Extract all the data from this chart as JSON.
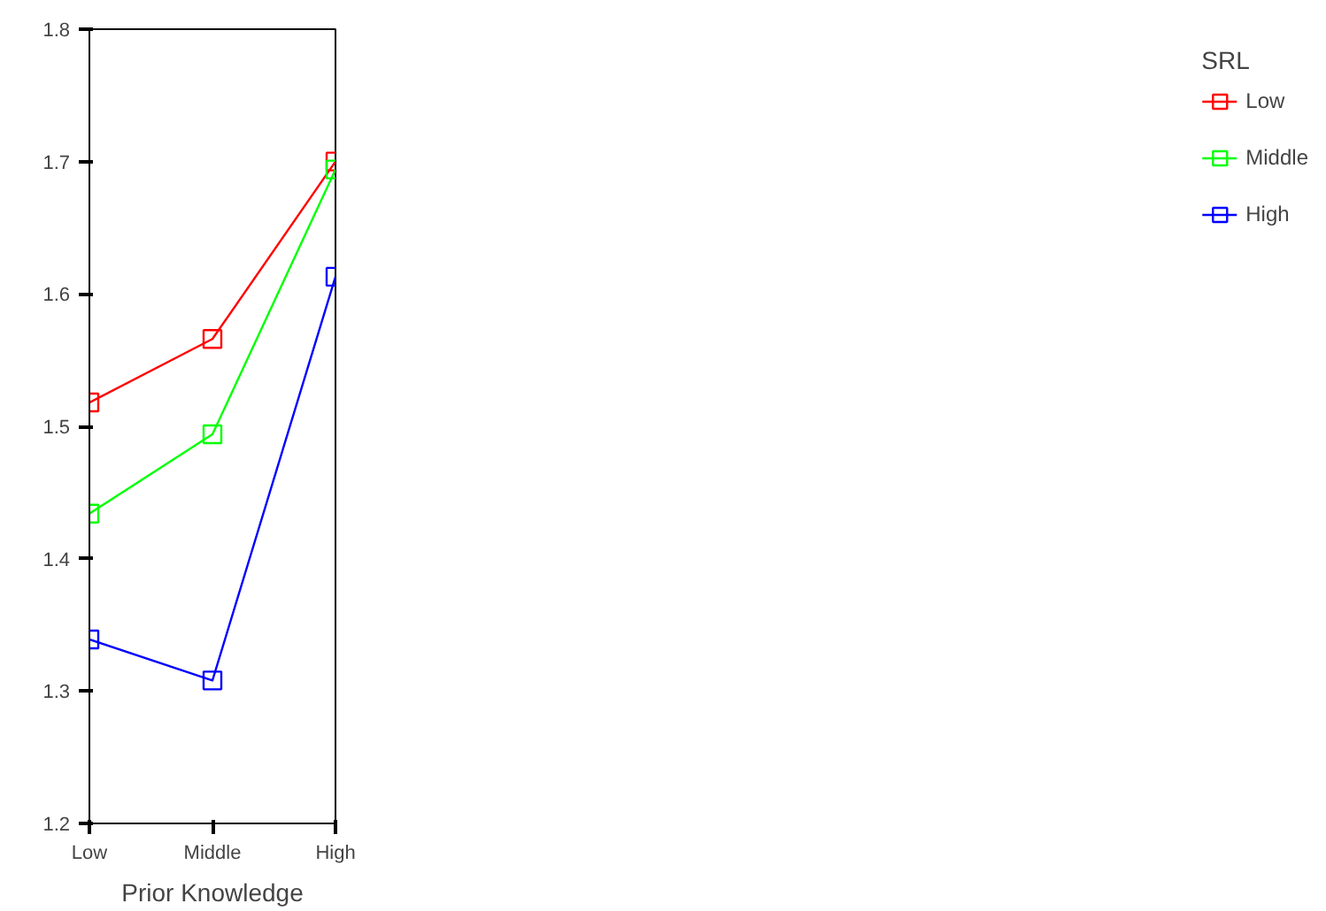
{
  "chart_data": {
    "type": "line",
    "xlabel": "Prior Knowledge",
    "legend_title": "SRL",
    "categories": [
      "Low",
      "Middle",
      "High"
    ],
    "series": [
      {
        "name": "Low",
        "color": "#ff0000",
        "values": [
          1.518,
          1.566,
          1.7
        ]
      },
      {
        "name": "Middle",
        "color": "#00ff00",
        "values": [
          1.434,
          1.494,
          1.694
        ]
      },
      {
        "name": "High",
        "color": "#0000ff",
        "values": [
          1.339,
          1.308,
          1.613
        ]
      }
    ],
    "ylim": [
      1.2,
      1.8
    ],
    "yticks": [
      1.2,
      1.3,
      1.4,
      1.5,
      1.6,
      1.7,
      1.8
    ],
    "grid": false,
    "legend": "right",
    "marker": "square",
    "line_style": "solid"
  }
}
